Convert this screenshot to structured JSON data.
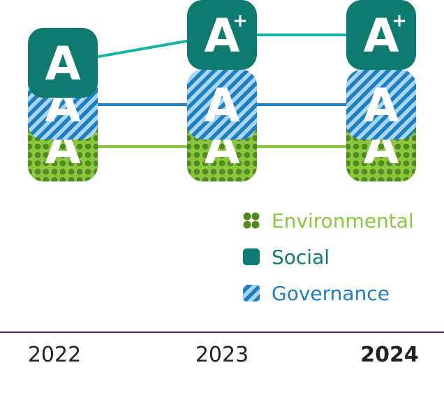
{
  "chart_data": {
    "type": "line",
    "title": "",
    "x": [
      "2022",
      "2023",
      "2024"
    ],
    "current_year": "2024",
    "series": [
      {
        "name": "Environmental",
        "key": "environmental",
        "ratings": [
          "A",
          "A",
          "A"
        ],
        "color": "#78b82a",
        "pattern": "dots"
      },
      {
        "name": "Governance",
        "key": "governance",
        "ratings": [
          "A",
          "A",
          "A"
        ],
        "color": "#2e8fc8",
        "pattern": "stripes"
      },
      {
        "name": "Social",
        "key": "social",
        "ratings": [
          "A",
          "A+",
          "A+"
        ],
        "color": "#0f7a70",
        "pattern": "solid"
      }
    ],
    "rating_scale": [
      "A",
      "A+"
    ],
    "legend": {
      "placement": "bottom-right",
      "order": [
        "Environmental",
        "Social",
        "Governance"
      ]
    }
  },
  "colors": {
    "environmental_dark": "#4e8a1e",
    "environmental_light": "#8cc63f",
    "social_badge": "#0f7a70",
    "social_line": "#17b3a5",
    "governance_dark": "#1f7fbe",
    "governance_light": "#a9d6f2",
    "axis_line": "#5b1c6b",
    "current_year_text": "#5b1c6b",
    "year_text": "#222222"
  }
}
